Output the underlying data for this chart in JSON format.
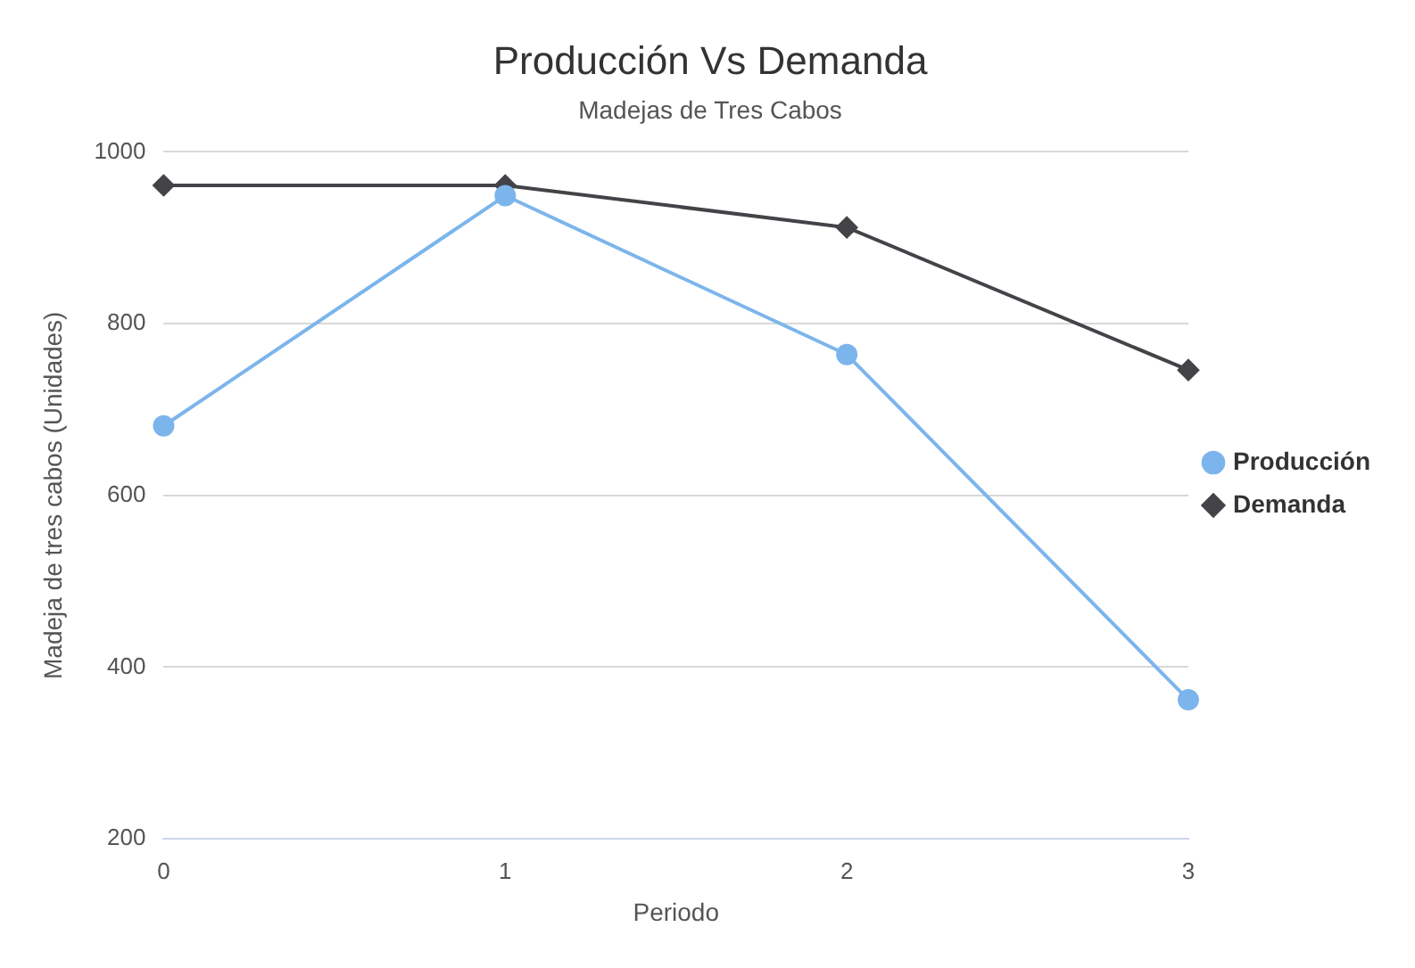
{
  "chart_data": {
    "type": "line",
    "title": "Producción Vs Demanda",
    "subtitle": "Madejas de Tres Cabos",
    "xlabel": "Periodo",
    "ylabel": "Madeja de tres cabos (Unidades)",
    "categories": [
      "0",
      "1",
      "2",
      "3"
    ],
    "series": [
      {
        "name": "Producción",
        "color": "#7cb5ec",
        "values": [
          681,
          949,
          764,
          362
        ],
        "marker": "circle"
      },
      {
        "name": "Demanda",
        "color": "#434348",
        "values": [
          961,
          961,
          912,
          746
        ],
        "marker": "diamond"
      }
    ],
    "ylim": [
      200,
      1000
    ],
    "yticks": [
      200,
      400,
      600,
      800,
      1000
    ],
    "grid": "y",
    "legend": "right",
    "line_style": "solid"
  }
}
